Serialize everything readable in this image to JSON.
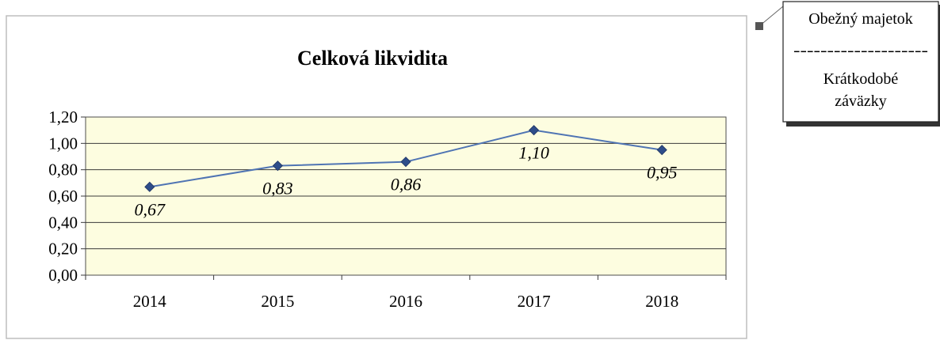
{
  "chart_data": {
    "type": "line",
    "title": "Celková likvidita",
    "xlabel": "",
    "ylabel": "",
    "categories": [
      "2014",
      "2015",
      "2016",
      "2017",
      "2018"
    ],
    "series": [
      {
        "values": [
          0.67,
          0.83,
          0.86,
          1.1,
          0.95
        ],
        "data_labels": [
          "0,67",
          "0,83",
          "0,86",
          "1,10",
          "0,95"
        ]
      }
    ],
    "ylim": [
      0,
      1.2
    ],
    "y_ticks": [
      0,
      0.2,
      0.4,
      0.6,
      0.8,
      1.0,
      1.2
    ],
    "y_tick_labels": [
      "0,00",
      "0,20",
      "0,40",
      "0,60",
      "0,80",
      "1,00",
      "1,20"
    ],
    "grid": "horizontal",
    "legend": "none",
    "colors": {
      "line": "#4f74b3",
      "marker": "#2e4d8a",
      "plot_area": "#fdfde0"
    }
  },
  "callout": {
    "numerator": "Obežný majetok",
    "divider": "--------------------",
    "denominator_line1": "Krátkodobé",
    "denominator_line2": "záväzky"
  }
}
